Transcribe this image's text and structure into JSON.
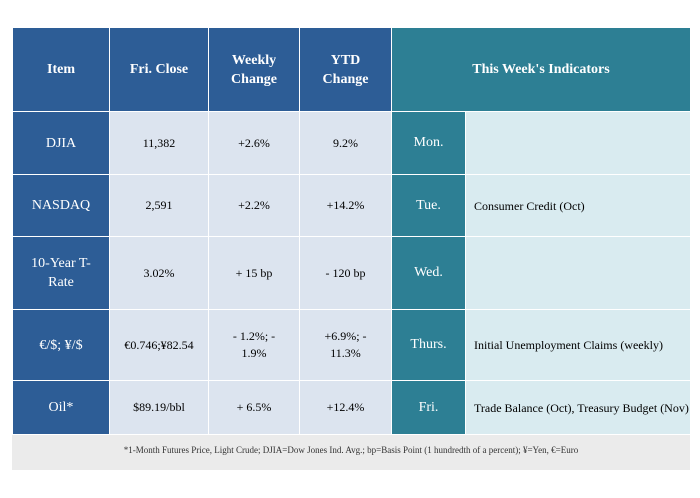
{
  "headers": {
    "item": "Item",
    "close": "Fri. Close",
    "weekly": "Weekly Change",
    "ytd": "YTD Change",
    "indicators": "This Week's Indicators"
  },
  "rows": [
    {
      "item": "DJIA",
      "close": "11,382",
      "weekly": "+2.6%",
      "ytd": "9.2%",
      "day": "Mon.",
      "indicator": ""
    },
    {
      "item": "NASDAQ",
      "close": "2,591",
      "weekly": "+2.2%",
      "ytd": "+14.2%",
      "day": "Tue.",
      "indicator": "Consumer Credit (Oct)"
    },
    {
      "item": "10-Year T-Rate",
      "close": "3.02%",
      "weekly": "+ 15 bp",
      "ytd": "- 120 bp",
      "day": "Wed.",
      "indicator": ""
    },
    {
      "item": "€/$; ¥/$",
      "close": "€0.746;¥82.54",
      "weekly": "- 1.2%; - 1.9%",
      "ytd": "+6.9%; - 11.3%",
      "day": "Thurs.",
      "indicator": "Initial Unemployment Claims (weekly)"
    },
    {
      "item": "Oil*",
      "close": "$89.19/bbl",
      "weekly": "+ 6.5%",
      "ytd": "+12.4%",
      "day": "Fri.",
      "indicator": "Trade Balance (Oct), Treasury Budget (Nov)"
    }
  ],
  "footnote": "*1-Month Futures Price, Light Crude; DJIA=Dow Jones Ind. Avg.; bp=Basis Point (1 hundredth of a percent); ¥=Yen, €=Euro"
}
